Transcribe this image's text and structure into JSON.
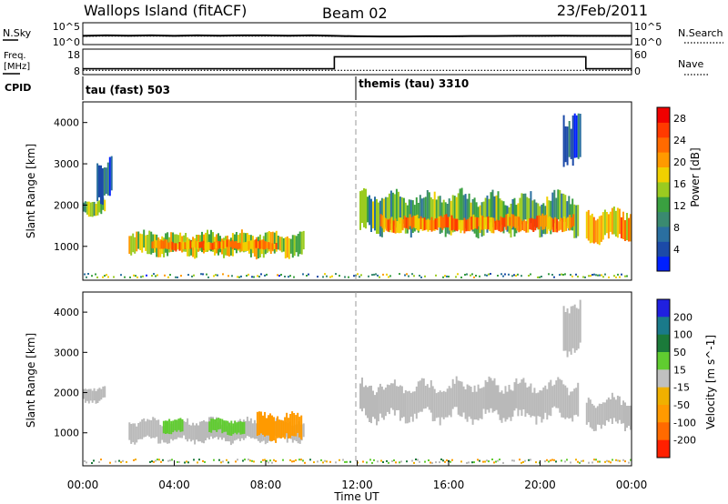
{
  "header": {
    "station": "Wallops Island (fitACF)",
    "beam": "Beam 02",
    "date": "23/Feb/2011"
  },
  "colors": {
    "power": [
      "#0020ff",
      "#1c4aa8",
      "#2a6fa0",
      "#3a8a70",
      "#3aa040",
      "#9acb20",
      "#f0d000",
      "#ff9a00",
      "#ff6a00",
      "#ff3a00",
      "#f00000"
    ],
    "velocity": [
      "#2020e0",
      "#1a7a8a",
      "#1b7a3a",
      "#60cc30",
      "#c0c0c0",
      "#f0b000",
      "#ff9a00",
      "#ff6a00",
      "#ff2000"
    ],
    "ground_scatter": "#b9b9b9",
    "noise_sky": "#000000",
    "noise_search": "#000000"
  },
  "chart_data": [
    {
      "type": "line",
      "panel": "noise",
      "ylabel_left": "N.Sky",
      "ylabel_right": "N.Search",
      "yticks_left": [
        "10^5",
        "10^0"
      ],
      "yticks_right": [
        "10^5",
        "10^0"
      ],
      "ylim": [
        0,
        5
      ],
      "log_scale": true,
      "x": [
        0,
        1,
        2,
        3,
        4,
        5,
        6,
        7,
        8,
        9,
        10,
        11,
        12,
        13,
        14,
        15,
        16,
        17,
        18,
        19,
        20,
        21,
        22,
        23,
        24
      ],
      "series": [
        {
          "name": "N.Sky",
          "style": "solid",
          "values": [
            2.0,
            2.1,
            2.05,
            2.1,
            2.0,
            2.1,
            2.05,
            2.1,
            2.1,
            2.05,
            2.1,
            2.0,
            1.9,
            1.85,
            1.85,
            1.9,
            1.9,
            1.95,
            1.95,
            2.0,
            2.0,
            2.05,
            2.0,
            2.0,
            2.0
          ]
        },
        {
          "name": "N.Search",
          "style": "dotted",
          "values": [
            1.9,
            1.95,
            1.95,
            1.95,
            1.95,
            1.95,
            1.95,
            1.95,
            1.95,
            1.95,
            1.95,
            1.9,
            1.85,
            1.85,
            1.85,
            1.85,
            1.85,
            1.9,
            1.9,
            1.9,
            1.9,
            1.95,
            1.95,
            1.95,
            1.95
          ]
        }
      ]
    },
    {
      "type": "line",
      "panel": "frequency",
      "ylabel_left": "Freq.",
      "ylabel_left_unit": "[MHz]",
      "ylabel_right": "Nave",
      "yticks_left": [
        "18",
        "8"
      ],
      "yticks_right": [
        "60",
        "0"
      ],
      "ylim_left": [
        8,
        18
      ],
      "ylim_right": [
        0,
        60
      ],
      "x": [
        0,
        11,
        11,
        22,
        22,
        24
      ],
      "series": [
        {
          "name": "Freq.",
          "style": "solid",
          "values": [
            10.3,
            10.3,
            15.0,
            15.0,
            10.3,
            10.3
          ]
        },
        {
          "name": "Nave",
          "style": "dotted",
          "values": [
            10,
            10,
            10,
            10,
            10,
            10
          ]
        }
      ]
    },
    {
      "type": "table",
      "panel": "cpid",
      "label": "CPID",
      "segments": [
        {
          "start": 0,
          "end": 12,
          "label": "tau (fast) 503"
        },
        {
          "start": 12,
          "end": 24,
          "label": "themis (tau) 3310"
        }
      ]
    },
    {
      "type": "heatmap",
      "panel": "power",
      "ylabel": "Slant Range [km]",
      "xlabel": "Time UT",
      "ylim": [
        180,
        4500
      ],
      "xlim": [
        0,
        24
      ],
      "yticks": [
        1000,
        2000,
        3000,
        4000
      ],
      "colorbar": {
        "label": "Power [dB]",
        "ticks": [
          4,
          8,
          12,
          16,
          20,
          24,
          28
        ],
        "range": [
          0,
          30
        ]
      },
      "regions": [
        {
          "name": "early-echoes",
          "t_start": 0.0,
          "t_end": 1.0,
          "r_start": 1750,
          "r_end": 2150,
          "level": 14
        },
        {
          "name": "rising-arc",
          "t_start": 0.6,
          "t_end": 1.3,
          "r_start": 2100,
          "r_end": 3200,
          "level": 6
        },
        {
          "name": "morning-band",
          "t_start": 2.0,
          "t_end": 9.7,
          "r_start": 750,
          "r_end": 1350,
          "level": 16
        },
        {
          "name": "morning-core",
          "t_start": 3.0,
          "t_end": 8.5,
          "r_start": 900,
          "r_end": 1150,
          "level": 22
        },
        {
          "name": "afternoon-band",
          "t_start": 12.1,
          "t_end": 21.7,
          "r_start": 1300,
          "r_end": 2300,
          "level": 12
        },
        {
          "name": "afternoon-core",
          "t_start": 13.0,
          "t_end": 21.5,
          "r_start": 1350,
          "r_end": 1750,
          "level": 22
        },
        {
          "name": "late-band",
          "t_start": 22.0,
          "t_end": 24.0,
          "r_start": 1100,
          "r_end": 1900,
          "level": 20
        },
        {
          "name": "late-arc",
          "t_start": 21.0,
          "t_end": 21.8,
          "r_start": 3000,
          "r_end": 4300,
          "level": 4
        }
      ]
    },
    {
      "type": "heatmap",
      "panel": "velocity",
      "ylabel": "Slant Range [km]",
      "xlabel": "Time UT",
      "ylim": [
        180,
        4500
      ],
      "xlim": [
        0,
        24
      ],
      "yticks": [
        1000,
        2000,
        3000,
        4000
      ],
      "colorbar": {
        "label": "Velocity [m s^-1]",
        "ticks": [
          200,
          100,
          50,
          15,
          -15,
          -50,
          -100,
          -200
        ]
      },
      "regions": [
        {
          "name": "early-echoes",
          "t_start": 0.0,
          "t_end": 1.0,
          "r_start": 1750,
          "r_end": 2150,
          "velocity": 0
        },
        {
          "name": "morning-band-gray",
          "t_start": 2.0,
          "t_end": 9.7,
          "r_start": 750,
          "r_end": 1350,
          "velocity": 0
        },
        {
          "name": "morning-green-1",
          "t_start": 3.5,
          "t_end": 4.4,
          "r_start": 950,
          "r_end": 1350,
          "velocity": 30
        },
        {
          "name": "morning-green-2",
          "t_start": 5.5,
          "t_end": 7.1,
          "r_start": 950,
          "r_end": 1350,
          "velocity": 30
        },
        {
          "name": "morning-orange",
          "t_start": 7.6,
          "t_end": 9.6,
          "r_start": 800,
          "r_end": 1500,
          "velocity": -60
        },
        {
          "name": "afternoon-band",
          "t_start": 12.1,
          "t_end": 21.7,
          "r_start": 1300,
          "r_end": 2300,
          "velocity": 0
        },
        {
          "name": "late-band",
          "t_start": 22.0,
          "t_end": 24.0,
          "r_start": 1100,
          "r_end": 1900,
          "velocity": 0
        },
        {
          "name": "late-arc",
          "t_start": 21.0,
          "t_end": 21.8,
          "r_start": 3000,
          "r_end": 4300,
          "velocity": 0
        }
      ]
    }
  ],
  "time_axis": {
    "label": "Time UT",
    "ticks": [
      "00:00",
      "04:00",
      "08:00",
      "12:00",
      "16:00",
      "20:00",
      "00:00"
    ]
  }
}
